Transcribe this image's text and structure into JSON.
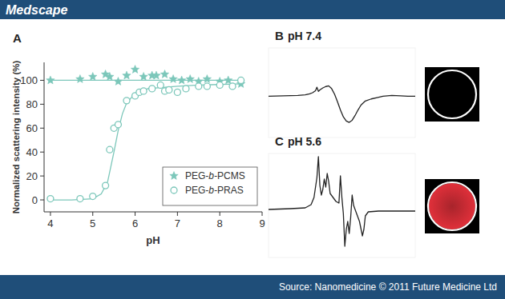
{
  "header": {
    "brand": "Medscape"
  },
  "footer": {
    "source": "Source: Nanomedicine © 2011 Future Medicine Ltd"
  },
  "mri_images": [
    {
      "fill": "#000000"
    },
    {
      "fill": "#e0303a"
    }
  ],
  "chart_data": [
    {
      "type": "scatter",
      "title": "A",
      "x_label": "pH",
      "y_label": "Normalized scattering intensity (%)",
      "xlim": [
        3.85,
        9
      ],
      "ylim": [
        -10,
        115
      ],
      "xticks": [
        4,
        5,
        6,
        7,
        8,
        9
      ],
      "yticks": [
        0,
        20,
        40,
        60,
        80,
        100
      ],
      "grid": false,
      "legend": "lower right",
      "series": [
        {
          "name": "PEG-b-PCMS",
          "color": "#7cc7ba",
          "marker": "star",
          "x": [
            4.0,
            4.7,
            5.0,
            5.3,
            5.4,
            5.6,
            5.8,
            6.0,
            6.2,
            6.4,
            6.5,
            6.7,
            6.9,
            7.1,
            7.3,
            7.5,
            7.7,
            8.0,
            8.2,
            8.5
          ],
          "values": [
            100,
            101,
            103,
            105,
            103,
            99,
            104,
            109,
            103,
            104,
            104,
            105,
            101,
            100,
            101,
            99,
            101,
            99,
            100,
            97
          ]
        },
        {
          "name": "PEG-b-PRAS",
          "color": "#7cc7ba",
          "marker": "open_circle",
          "x": [
            4.0,
            4.7,
            5.0,
            5.3,
            5.4,
            5.5,
            5.6,
            5.8,
            6.0,
            6.1,
            6.2,
            6.4,
            6.6,
            6.7,
            6.8,
            7.0,
            7.2,
            7.5,
            7.7,
            8.0,
            8.3,
            8.5
          ],
          "values": [
            1,
            1,
            3,
            12,
            42,
            60,
            63,
            83,
            87,
            90,
            91,
            93,
            96,
            91,
            92,
            90,
            93,
            95,
            95,
            96,
            95,
            100
          ]
        },
        {
          "type": "line",
          "color": "#7cc7ba",
          "line_style": "solid",
          "x": [
            4.0,
            8.5
          ],
          "values": [
            100,
            100
          ]
        },
        {
          "type": "line",
          "color": "#7cc7ba",
          "line_style": "solid",
          "x": [
            4.0,
            4.5,
            5.0,
            5.2,
            5.35,
            5.5,
            5.6,
            5.7,
            5.8,
            6.0,
            6.3,
            7.0,
            7.5,
            8.5
          ],
          "values": [
            0,
            0,
            1,
            5,
            15,
            40,
            58,
            72,
            81,
            89,
            93,
            95,
            96,
            97
          ]
        }
      ]
    },
    {
      "type": "line",
      "title": "B",
      "subtitle": "pH 7.4",
      "xlim": [
        0,
        100
      ],
      "ylim": [
        -6,
        7
      ],
      "tick_labels": false,
      "color": "#222222",
      "x": [
        0,
        10,
        20,
        25,
        28,
        30,
        32,
        33,
        34,
        35,
        37,
        39,
        41,
        43,
        45,
        47,
        49,
        51,
        53,
        55,
        57,
        59,
        61,
        63,
        66,
        70,
        74,
        78,
        84,
        90,
        95,
        100
      ],
      "values": [
        0,
        0.05,
        0.1,
        0.2,
        0.35,
        0.5,
        0.8,
        1.3,
        0.7,
        0.9,
        1.2,
        1.4,
        1.5,
        1.1,
        0.3,
        -0.8,
        -2.0,
        -3.0,
        -3.6,
        -3.8,
        -3.5,
        -2.8,
        -2.0,
        -1.3,
        -0.7,
        -0.4,
        -0.2,
        0,
        0.1,
        0.05,
        0,
        0
      ]
    },
    {
      "type": "line",
      "title": "C",
      "subtitle": "pH 5.6",
      "xlim": [
        0,
        100
      ],
      "ylim": [
        -6,
        7
      ],
      "tick_labels": false,
      "color": "#222222",
      "x": [
        0,
        15,
        25,
        29,
        31,
        33,
        34,
        35,
        36,
        37,
        38,
        39,
        40,
        41,
        42,
        44,
        46,
        48,
        49,
        50,
        51,
        52,
        53,
        54,
        55,
        56,
        57,
        58,
        60,
        62,
        64,
        65,
        66,
        68,
        75,
        85,
        100
      ],
      "values": [
        0,
        0.1,
        0.2,
        0.6,
        1.5,
        4.0,
        6.6,
        3.0,
        1.8,
        2.5,
        3.8,
        2.8,
        4.5,
        3.5,
        2.0,
        1.5,
        1.0,
        0.8,
        4.2,
        1.5,
        -0.5,
        -4.6,
        -2.5,
        -1.5,
        -3.0,
        -1.0,
        1.8,
        0.5,
        -0.5,
        -1.5,
        -3.3,
        -2.5,
        -0.8,
        -0.3,
        -0.2,
        -0.2,
        -0.2
      ]
    }
  ]
}
